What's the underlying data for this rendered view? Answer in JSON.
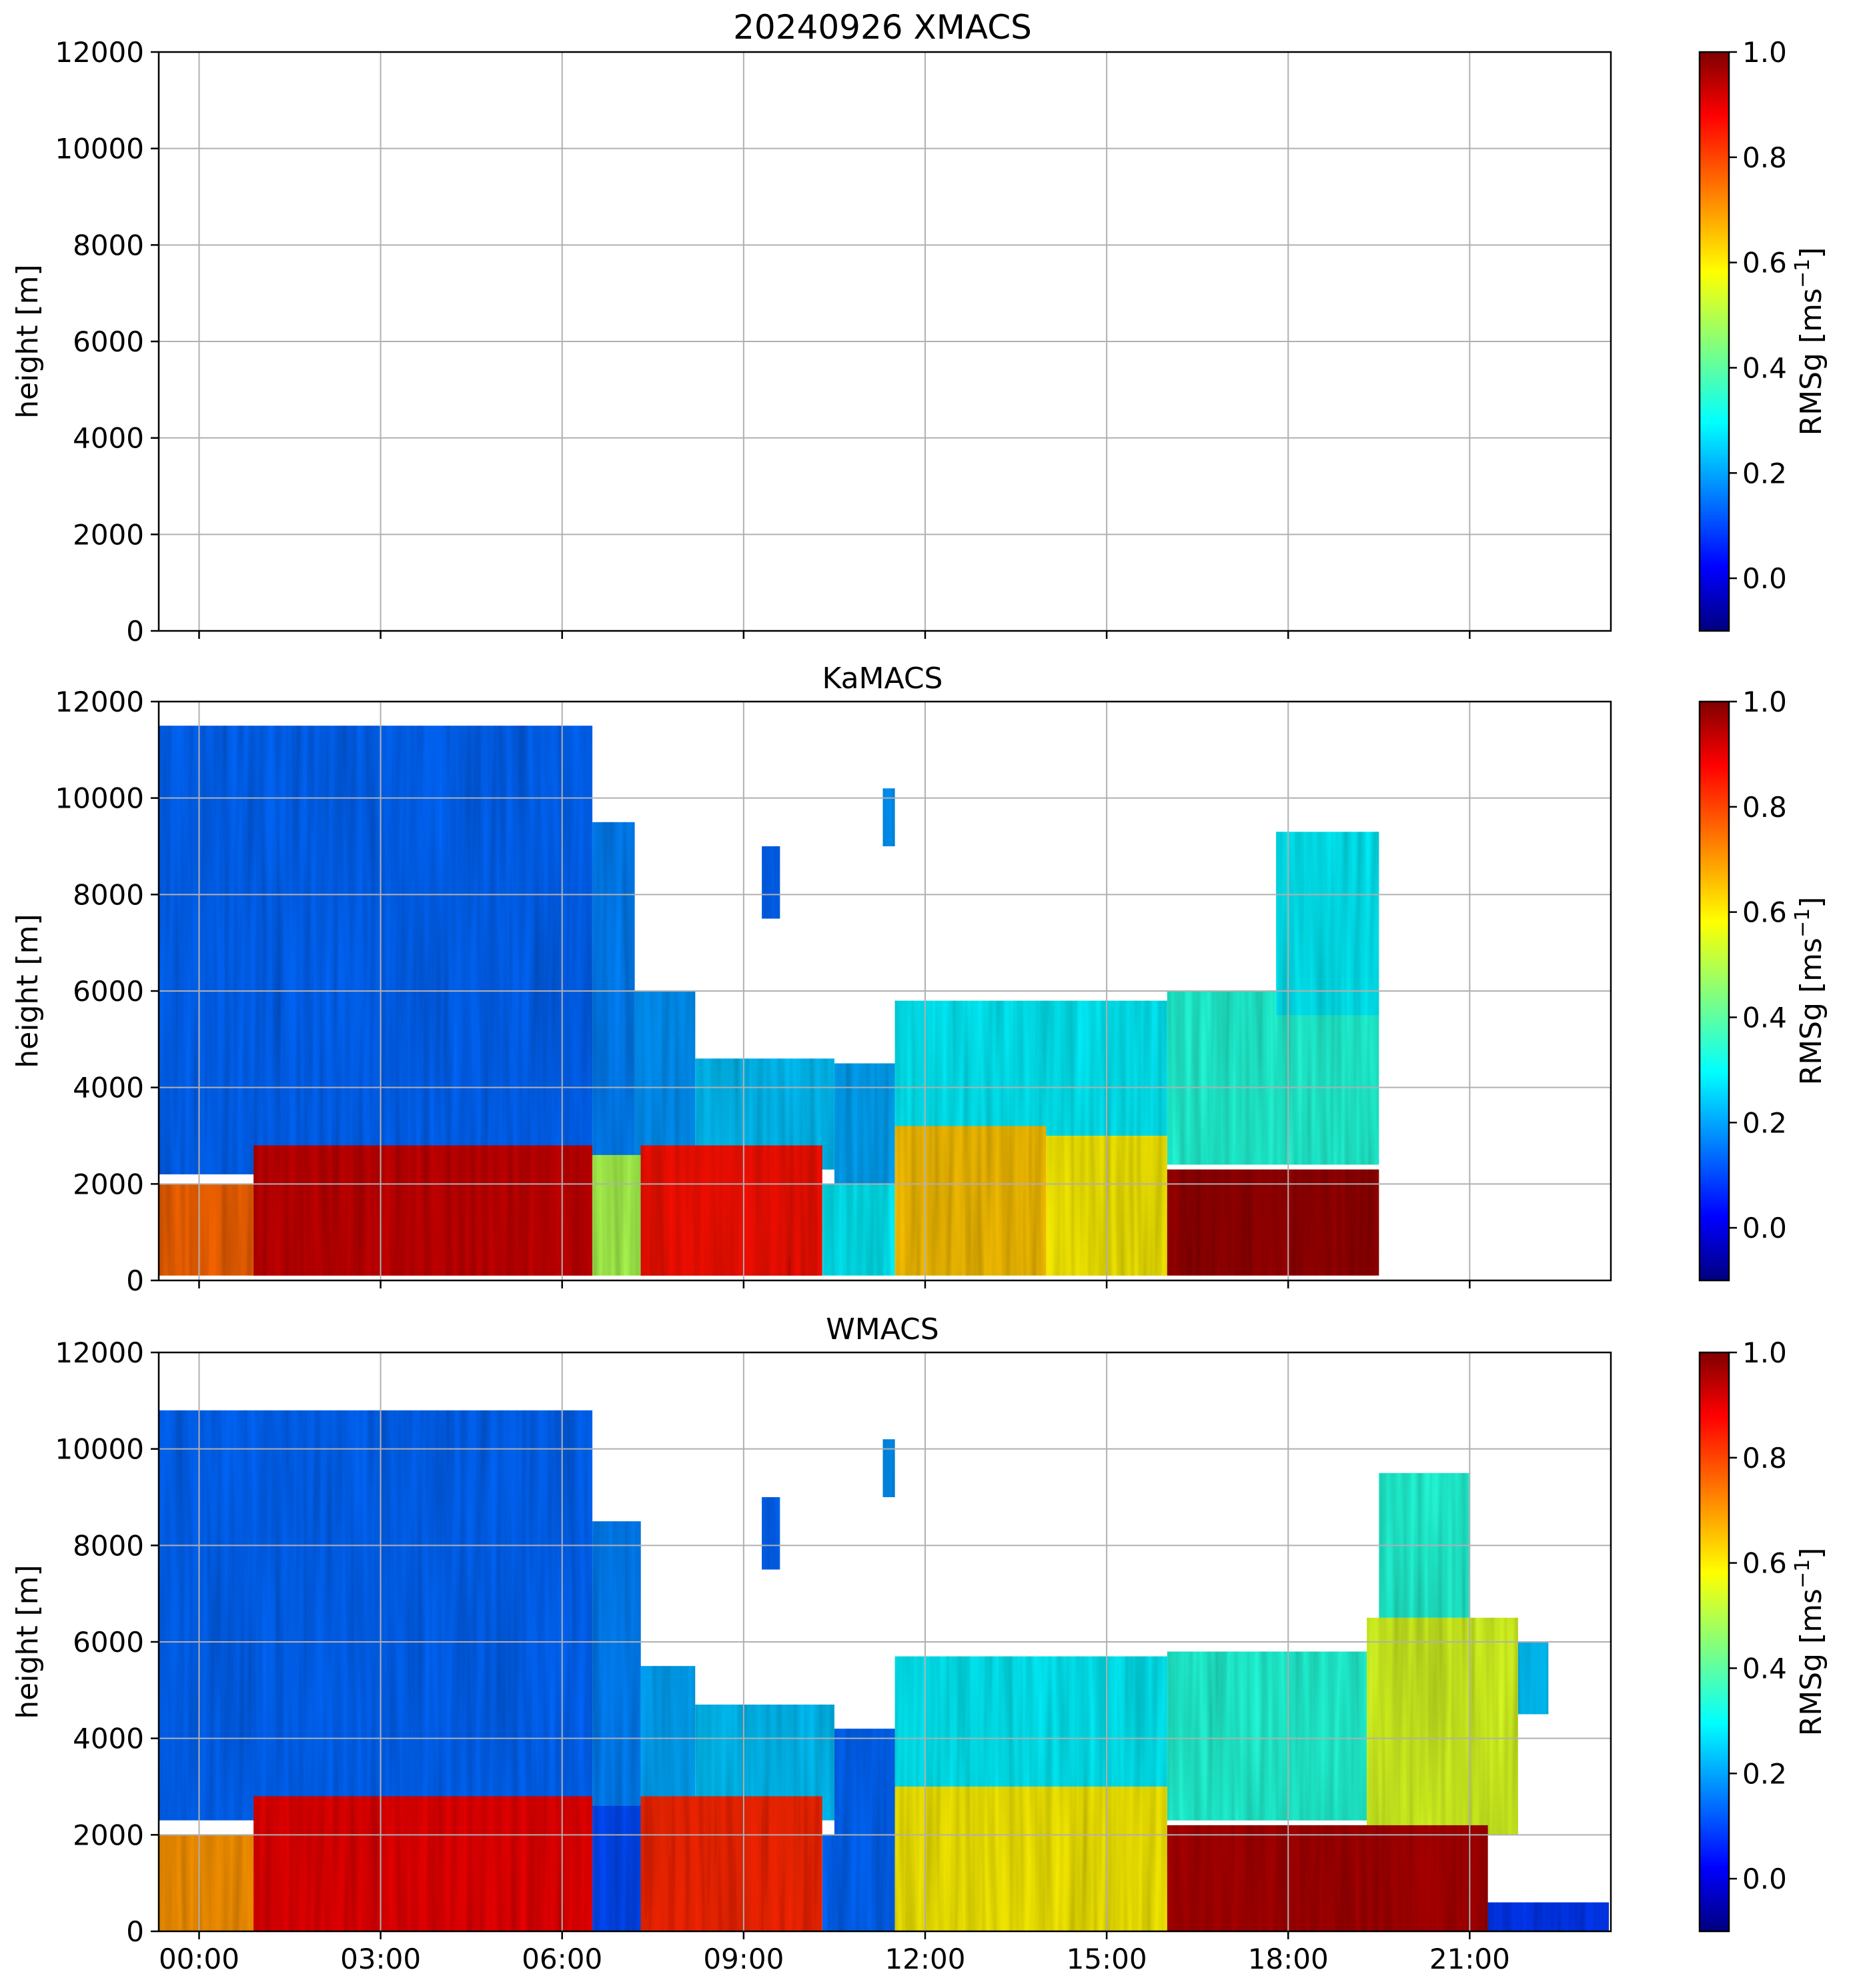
{
  "figure": {
    "title": "20240926 XMACS"
  },
  "colors": {
    "background": "#ffffff",
    "grid": "#b0b0b0",
    "axes": "#000000",
    "colormap": "jet"
  },
  "chart_data": [
    {
      "type": "heatmap",
      "title": "20240926 XMACS",
      "xlabel": "",
      "ylabel": "height [m]",
      "x_ticks": [
        "00:00",
        "03:00",
        "06:00",
        "09:00",
        "12:00",
        "15:00",
        "18:00",
        "21:00"
      ],
      "x_tick_labels_visible": false,
      "xlim": [
        "-00:40",
        "23:20"
      ],
      "y_ticks": [
        0,
        2000,
        4000,
        6000,
        8000,
        10000,
        12000
      ],
      "ylim": [
        0,
        12000
      ],
      "grid": true,
      "has_data": false,
      "colorbar": {
        "label": "RMSg [ms",
        "label_exponent": "−1",
        "label_suffix": "]",
        "ticks": [
          0.0,
          0.2,
          0.4,
          0.6,
          0.8,
          1.0
        ],
        "tick_labels": [
          "0.0",
          "0.2",
          "0.4",
          "0.6",
          "0.8",
          "1.0"
        ],
        "range": [
          -0.1,
          1.0
        ],
        "colormap": "jet"
      },
      "regions": []
    },
    {
      "type": "heatmap",
      "title": "KaMACS",
      "xlabel": "",
      "ylabel": "height [m]",
      "x_ticks": [
        "00:00",
        "03:00",
        "06:00",
        "09:00",
        "12:00",
        "15:00",
        "18:00",
        "21:00"
      ],
      "x_tick_labels_visible": false,
      "xlim": [
        "-00:40",
        "23:20"
      ],
      "y_ticks": [
        0,
        2000,
        4000,
        6000,
        8000,
        10000,
        12000
      ],
      "ylim": [
        0,
        12000
      ],
      "grid": true,
      "has_data": true,
      "colorbar": {
        "label": "RMSg [ms",
        "label_exponent": "−1",
        "label_suffix": "]",
        "ticks": [
          0.0,
          0.2,
          0.4,
          0.6,
          0.8,
          1.0
        ],
        "tick_labels": [
          "0.0",
          "0.2",
          "0.4",
          "0.6",
          "0.8",
          "1.0"
        ],
        "range": [
          -0.1,
          1.0
        ],
        "colormap": "jet"
      },
      "regions": [
        {
          "kind": "upper",
          "t_start": -0.67,
          "t_end": 6.5,
          "h_bottom": 2200,
          "h_top": 11500,
          "value": 0.15
        },
        {
          "kind": "upper",
          "t_start": 6.5,
          "t_end": 7.2,
          "h_bottom": 2500,
          "h_top": 9500,
          "value": 0.18
        },
        {
          "kind": "upper",
          "t_start": 7.2,
          "t_end": 8.2,
          "h_bottom": 2500,
          "h_top": 6000,
          "value": 0.2
        },
        {
          "kind": "upper",
          "t_start": 8.2,
          "t_end": 10.5,
          "h_bottom": 2300,
          "h_top": 4600,
          "value": 0.25
        },
        {
          "kind": "upper",
          "t_start": 10.5,
          "t_end": 11.5,
          "h_bottom": 2000,
          "h_top": 4500,
          "value": 0.22
        },
        {
          "kind": "upper",
          "t_start": 11.5,
          "t_end": 16.0,
          "h_bottom": 3000,
          "h_top": 5800,
          "value": 0.3
        },
        {
          "kind": "upper",
          "t_start": 16.0,
          "t_end": 19.5,
          "h_bottom": 2400,
          "h_top": 6000,
          "value": 0.35
        },
        {
          "kind": "boundary",
          "t_start": -0.67,
          "t_end": 0.9,
          "h_bottom": 100,
          "h_top": 2000,
          "value": 0.75
        },
        {
          "kind": "boundary",
          "t_start": 0.9,
          "t_end": 6.5,
          "h_bottom": 100,
          "h_top": 2800,
          "value": 0.92
        },
        {
          "kind": "boundary",
          "t_start": 6.5,
          "t_end": 7.3,
          "h_bottom": 100,
          "h_top": 2600,
          "value": 0.5
        },
        {
          "kind": "boundary",
          "t_start": 7.3,
          "t_end": 10.3,
          "h_bottom": 100,
          "h_top": 2800,
          "value": 0.85
        },
        {
          "kind": "boundary",
          "t_start": 10.3,
          "t_end": 11.5,
          "h_bottom": 100,
          "h_top": 2000,
          "value": 0.3
        },
        {
          "kind": "boundary",
          "t_start": 11.5,
          "t_end": 14.0,
          "h_bottom": 100,
          "h_top": 3200,
          "value": 0.65
        },
        {
          "kind": "boundary",
          "t_start": 14.0,
          "t_end": 16.0,
          "h_bottom": 100,
          "h_top": 3000,
          "value": 0.6
        },
        {
          "kind": "boundary",
          "t_start": 16.0,
          "t_end": 19.5,
          "h_bottom": 100,
          "h_top": 2300,
          "value": 0.97
        },
        {
          "kind": "cell",
          "t_start": 9.3,
          "t_end": 9.6,
          "h_bottom": 7500,
          "h_top": 9000,
          "value": 0.15
        },
        {
          "kind": "cell",
          "t_start": 11.3,
          "t_end": 11.5,
          "h_bottom": 9000,
          "h_top": 10200,
          "value": 0.2
        },
        {
          "kind": "cell",
          "t_start": 17.8,
          "t_end": 19.5,
          "h_bottom": 5500,
          "h_top": 9300,
          "value": 0.3
        }
      ]
    },
    {
      "type": "heatmap",
      "title": "WMACS",
      "xlabel": "",
      "ylabel": "height [m]",
      "x_ticks": [
        "00:00",
        "03:00",
        "06:00",
        "09:00",
        "12:00",
        "15:00",
        "18:00",
        "21:00"
      ],
      "x_tick_labels_visible": true,
      "xlim": [
        "-00:40",
        "23:20"
      ],
      "y_ticks": [
        0,
        2000,
        4000,
        6000,
        8000,
        10000,
        12000
      ],
      "ylim": [
        0,
        12000
      ],
      "grid": true,
      "has_data": true,
      "colorbar": {
        "label": "RMSg [ms",
        "label_exponent": "−1",
        "label_suffix": "]",
        "ticks": [
          0.0,
          0.2,
          0.4,
          0.6,
          0.8,
          1.0
        ],
        "tick_labels": [
          "0.0",
          "0.2",
          "0.4",
          "0.6",
          "0.8",
          "1.0"
        ],
        "range": [
          -0.1,
          1.0
        ],
        "colormap": "jet"
      },
      "regions": [
        {
          "kind": "upper",
          "t_start": -0.67,
          "t_end": 6.5,
          "h_bottom": 2300,
          "h_top": 10800,
          "value": 0.15
        },
        {
          "kind": "upper",
          "t_start": 6.5,
          "t_end": 7.3,
          "h_bottom": 2500,
          "h_top": 8500,
          "value": 0.18
        },
        {
          "kind": "upper",
          "t_start": 7.3,
          "t_end": 8.2,
          "h_bottom": 2500,
          "h_top": 5500,
          "value": 0.22
        },
        {
          "kind": "upper",
          "t_start": 8.2,
          "t_end": 10.5,
          "h_bottom": 2300,
          "h_top": 4700,
          "value": 0.25
        },
        {
          "kind": "upper",
          "t_start": 10.5,
          "t_end": 11.5,
          "h_bottom": 2000,
          "h_top": 4200,
          "value": 0.15
        },
        {
          "kind": "upper",
          "t_start": 11.5,
          "t_end": 16.0,
          "h_bottom": 3000,
          "h_top": 5700,
          "value": 0.3
        },
        {
          "kind": "upper",
          "t_start": 16.0,
          "t_end": 19.3,
          "h_bottom": 2300,
          "h_top": 5800,
          "value": 0.35
        },
        {
          "kind": "upper",
          "t_start": 19.3,
          "t_end": 21.8,
          "h_bottom": 2000,
          "h_top": 6500,
          "value": 0.55
        },
        {
          "kind": "upper",
          "t_start": 21.8,
          "t_end": 22.3,
          "h_bottom": 4500,
          "h_top": 6000,
          "value": 0.25
        },
        {
          "kind": "boundary",
          "t_start": -0.67,
          "t_end": 0.9,
          "h_bottom": 0,
          "h_top": 2000,
          "value": 0.7
        },
        {
          "kind": "boundary",
          "t_start": 0.9,
          "t_end": 6.5,
          "h_bottom": 0,
          "h_top": 2800,
          "value": 0.88
        },
        {
          "kind": "boundary",
          "t_start": 6.5,
          "t_end": 7.3,
          "h_bottom": 0,
          "h_top": 2600,
          "value": 0.12
        },
        {
          "kind": "boundary",
          "t_start": 7.3,
          "t_end": 10.3,
          "h_bottom": 0,
          "h_top": 2800,
          "value": 0.82
        },
        {
          "kind": "boundary",
          "t_start": 10.3,
          "t_end": 11.5,
          "h_bottom": 0,
          "h_top": 2000,
          "value": 0.15
        },
        {
          "kind": "boundary",
          "t_start": 11.5,
          "t_end": 16.0,
          "h_bottom": 0,
          "h_top": 3000,
          "value": 0.6
        },
        {
          "kind": "boundary",
          "t_start": 16.0,
          "t_end": 21.3,
          "h_bottom": 0,
          "h_top": 2200,
          "value": 0.95
        },
        {
          "kind": "boundary",
          "t_start": 21.3,
          "t_end": 23.3,
          "h_bottom": 0,
          "h_top": 600,
          "value": 0.1
        },
        {
          "kind": "cell",
          "t_start": 9.3,
          "t_end": 9.6,
          "h_bottom": 7500,
          "h_top": 9000,
          "value": 0.15
        },
        {
          "kind": "cell",
          "t_start": 11.3,
          "t_end": 11.5,
          "h_bottom": 9000,
          "h_top": 10200,
          "value": 0.2
        },
        {
          "kind": "cell",
          "t_start": 19.5,
          "t_end": 21.0,
          "h_bottom": 6500,
          "h_top": 9500,
          "value": 0.35
        }
      ]
    }
  ]
}
